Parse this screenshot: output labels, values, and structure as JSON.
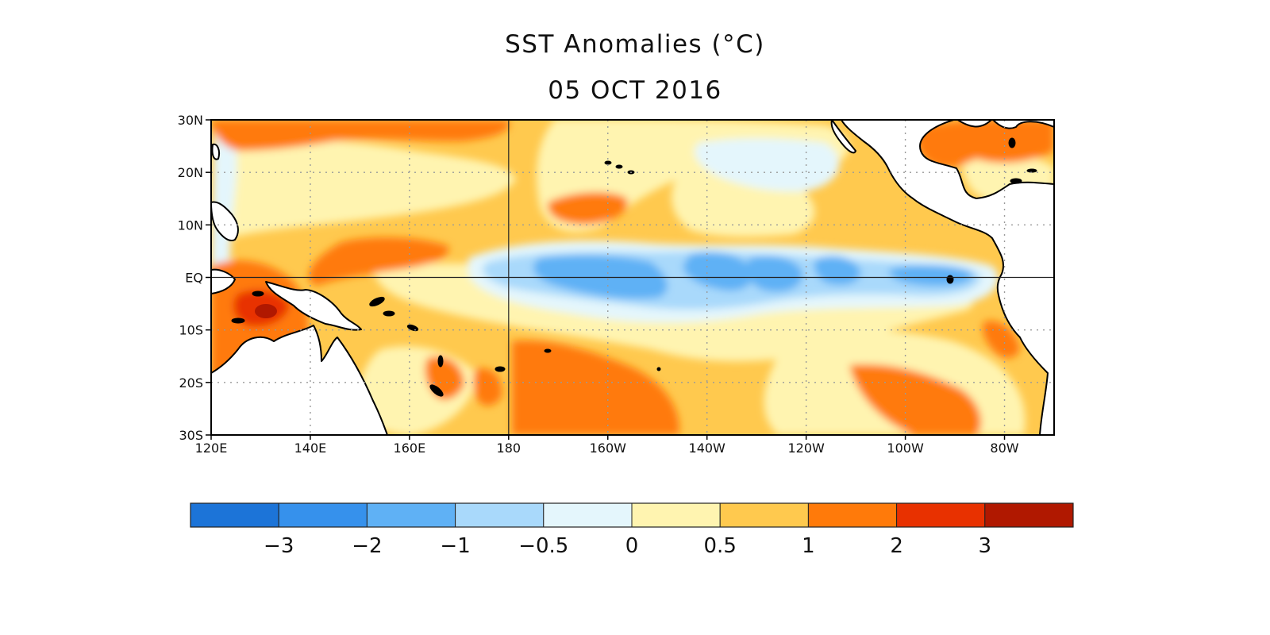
{
  "title": "SST Anomalies (°C)",
  "date": "05 OCT 2016",
  "map": {
    "lon_range": [
      120,
      290
    ],
    "lat_range": [
      -30,
      30
    ],
    "lat_ticks": [
      {
        "label": "30N",
        "lat": 30
      },
      {
        "label": "20N",
        "lat": 20
      },
      {
        "label": "10N",
        "lat": 10
      },
      {
        "label": "EQ",
        "lat": 0
      },
      {
        "label": "10S",
        "lat": -10
      },
      {
        "label": "20S",
        "lat": -20
      },
      {
        "label": "30S",
        "lat": -30
      }
    ],
    "lon_ticks": [
      {
        "label": "120E",
        "lon": 120
      },
      {
        "label": "140E",
        "lon": 140
      },
      {
        "label": "160E",
        "lon": 160
      },
      {
        "label": "180",
        "lon": 180
      },
      {
        "label": "160W",
        "lon": 200
      },
      {
        "label": "140W",
        "lon": 220
      },
      {
        "label": "120W",
        "lon": 240
      },
      {
        "label": "100W",
        "lon": 260
      },
      {
        "label": "80W",
        "lon": 280
      }
    ],
    "reference_lines": {
      "equator_lat": 0,
      "dateline_lon": 180
    },
    "grid": "dotted"
  },
  "colorbar": {
    "colors": [
      "#1c74d8",
      "#3691ec",
      "#5fb1f5",
      "#a9d9fb",
      "#e4f6fc",
      "#fff4b0",
      "#ffc94e",
      "#ff7a0a",
      "#e83100",
      "#b01800"
    ],
    "labels": [
      "−3",
      "−2",
      "−1",
      "−0.5",
      "0",
      "0.5",
      "1",
      "2",
      "3"
    ]
  },
  "palette": {
    "land": "#ffffff",
    "coast": "#000000"
  }
}
